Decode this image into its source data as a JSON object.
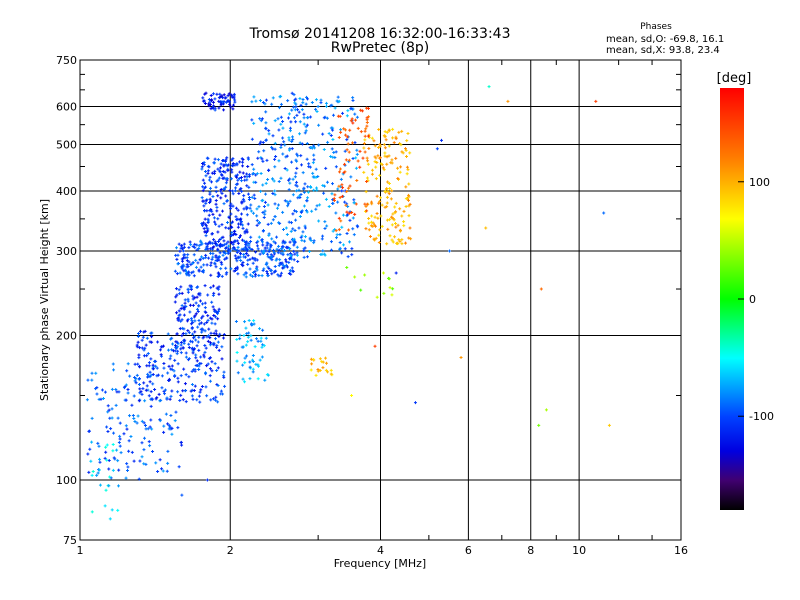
{
  "title": {
    "line1": "Tromsø 20141208 16:32:00-16:33:43",
    "line2": "RwPretec (8p)"
  },
  "stats": {
    "header": "Phases",
    "o_line": "mean, sd,O: -69.8, 16.1",
    "x_line": "mean, sd,X:  93.8, 23.4"
  },
  "chart_data": {
    "type": "scatter",
    "xlabel": "Frequency [MHz]",
    "ylabel": "Stationary phase Virtual Height [km]",
    "xscale": "log",
    "yscale": "log",
    "xlim": [
      1,
      16
    ],
    "ylim": [
      75,
      750
    ],
    "xticks": [
      1,
      2,
      4,
      6,
      8,
      10,
      16
    ],
    "xtick_labels": [
      "1",
      "2",
      "4",
      "6",
      "8",
      "10",
      "16"
    ],
    "yticks": [
      75,
      100,
      200,
      300,
      400,
      500,
      600,
      750
    ],
    "ytick_labels": [
      "75",
      "100",
      "200",
      "300",
      "400",
      "500",
      "600",
      "750"
    ],
    "grid": true,
    "colorbar": {
      "label": "[deg]",
      "ticks": [
        100,
        0,
        -100
      ],
      "tick_labels": [
        "100",
        "0",
        "-100"
      ],
      "range": [
        -180,
        180
      ],
      "colors": [
        "#ff0000",
        "#ff8000",
        "#ffff00",
        "#00ff00",
        "#00ffff",
        "#0080ff",
        "#0000ff",
        "#000080",
        "#000000"
      ]
    },
    "series": [
      {
        "role": "O-mode traces",
        "mean_phase_deg": -69.8,
        "clusters": [
          {
            "x": [
              1.03,
              1.6
            ],
            "y": [
              100,
              175
            ],
            "phase": -95,
            "n": 160
          },
          {
            "x": [
              1.3,
              1.95
            ],
            "y": [
              145,
              205
            ],
            "phase": -105,
            "n": 220
          },
          {
            "x": [
              1.55,
              1.9
            ],
            "y": [
              185,
              255
            ],
            "phase": -110,
            "n": 150
          },
          {
            "x": [
              1.55,
              2.7
            ],
            "y": [
              265,
              315
            ],
            "phase": -100,
            "n": 320
          },
          {
            "x": [
              1.75,
              2.2
            ],
            "y": [
              300,
              470
            ],
            "phase": -108,
            "n": 280
          },
          {
            "x": [
              2.2,
              2.9
            ],
            "y": [
              280,
              640
            ],
            "phase": -90,
            "n": 230
          },
          {
            "x": [
              2.6,
              3.6
            ],
            "y": [
              290,
              630
            ],
            "phase": -85,
            "n": 220
          },
          {
            "x": [
              1.75,
              2.05
            ],
            "y": [
              590,
              640
            ],
            "phase": -115,
            "n": 60
          },
          {
            "x": [
              1.05,
              1.2
            ],
            "y": [
              85,
              120
            ],
            "phase": -60,
            "n": 25
          },
          {
            "x": [
              2.05,
              2.4
            ],
            "y": [
              160,
              215
            ],
            "phase": -70,
            "n": 60
          }
        ]
      },
      {
        "role": "X-mode traces",
        "mean_phase_deg": 93.8,
        "clusters": [
          {
            "x": [
              3.7,
              4.6
            ],
            "y": [
              310,
              540
            ],
            "phase": 100,
            "n": 180
          },
          {
            "x": [
              3.2,
              3.8
            ],
            "y": [
              330,
              600
            ],
            "phase": 140,
            "n": 70
          },
          {
            "x": [
              2.9,
              3.2
            ],
            "y": [
              165,
              180
            ],
            "phase": 95,
            "n": 20
          },
          {
            "x": [
              3.4,
              4.3
            ],
            "y": [
              240,
              280
            ],
            "phase": 40,
            "n": 12
          }
        ]
      },
      {
        "role": "scattered points",
        "points": [
          [
            6.6,
            660,
            -40
          ],
          [
            7.2,
            615,
            110
          ],
          [
            10.8,
            615,
            150
          ],
          [
            6.5,
            335,
            95
          ],
          [
            8.4,
            250,
            130
          ],
          [
            8.6,
            140,
            45
          ],
          [
            11.5,
            130,
            90
          ],
          [
            8.3,
            130,
            30
          ],
          [
            11.2,
            360,
            -90
          ],
          [
            5.2,
            490,
            -100
          ],
          [
            5.3,
            510,
            -110
          ],
          [
            5.5,
            300,
            -90
          ],
          [
            4.7,
            145,
            -105
          ],
          [
            4.3,
            270,
            -115
          ],
          [
            5.8,
            180,
            110
          ],
          [
            1.8,
            100,
            -110
          ],
          [
            1.6,
            93,
            -95
          ],
          [
            1.15,
            83,
            -60
          ],
          [
            3.5,
            150,
            70
          ],
          [
            3.9,
            190,
            150
          ]
        ]
      }
    ]
  }
}
